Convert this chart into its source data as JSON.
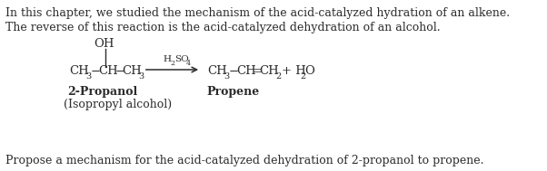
{
  "bg_color": "#ffffff",
  "text_color": "#2b2b2b",
  "figsize": [
    6.02,
    1.89
  ],
  "dpi": 100,
  "line1": "In this chapter, we studied the mechanism of the acid-catalyzed hydration of an alkene.",
  "line2": "The reverse of this reaction is the acid-catalyzed dehydration of an alcohol.",
  "bottom_text": "Propose a mechanism for the acid-catalyzed dehydration of 2-propanol to propene.",
  "label_left_bold": "2-Propanol",
  "label_left_normal": "(Isopropyl alcohol)",
  "label_right_bold": "Propene",
  "font_size_body": 9.0,
  "font_size_chem": 9.5,
  "font_size_sub": 7.0,
  "font_size_label": 9.0,
  "font_size_arrow_label": 7.5
}
